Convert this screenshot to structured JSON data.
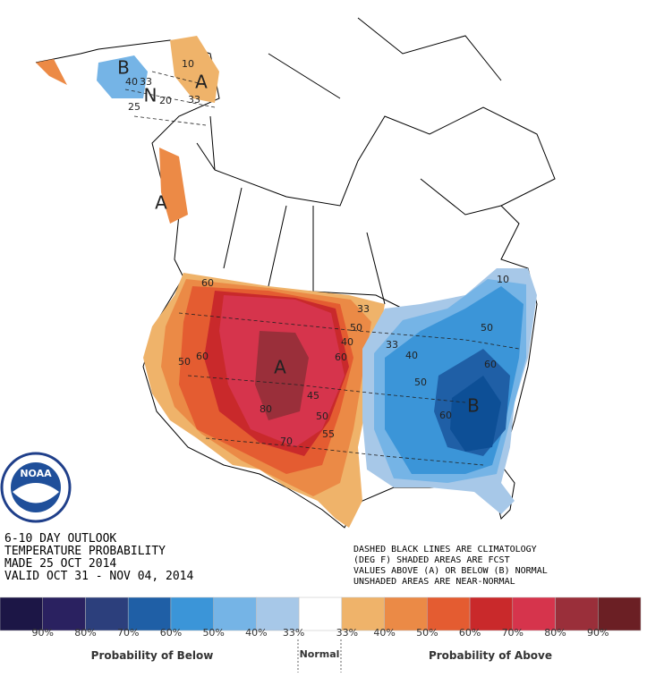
{
  "map": {
    "labels": [
      "B",
      "40",
      "33",
      "N",
      "25",
      "20",
      "10",
      "A",
      "33",
      "A",
      "60",
      "50",
      "60",
      "A",
      "80",
      "70",
      "45",
      "50",
      "55",
      "33",
      "50",
      "60",
      "40",
      "33",
      "50",
      "40",
      "50",
      "60",
      "B",
      "60",
      "10"
    ]
  },
  "logo": {
    "text": "NOAA"
  },
  "header": {
    "lines": [
      "6-10 DAY OUTLOOK",
      "TEMPERATURE PROBABILITY",
      "MADE 25 OCT 2014",
      "VALID OCT 31 - NOV 04, 2014"
    ]
  },
  "notes": {
    "lines": [
      "DASHED BLACK LINES ARE CLIMATOLOGY",
      "(DEG F) SHADED AREAS ARE FCST",
      "VALUES ABOVE (A) OR BELOW (B) NORMAL",
      "UNSHADED AREAS ARE NEAR-NORMAL"
    ]
  },
  "legend": {
    "colors": [
      "#1c1646",
      "#2a2160",
      "#2c3f7c",
      "#1f5fa6",
      "#3b95d8",
      "#75b4e6",
      "#a7c8e8",
      "#ffffff",
      "#efb36a",
      "#eb8a46",
      "#e45c31",
      "#c9292b",
      "#d6344c",
      "#9a2f3a",
      "#6b1f24"
    ],
    "labels": [
      "90%",
      "80%",
      "70%",
      "60%",
      "50%",
      "40%",
      "33%",
      "33%",
      "40%",
      "50%",
      "60%",
      "70%",
      "80%",
      "90%"
    ],
    "below": "Probability of Below",
    "normal": "Normal",
    "above": "Probability of Above"
  }
}
